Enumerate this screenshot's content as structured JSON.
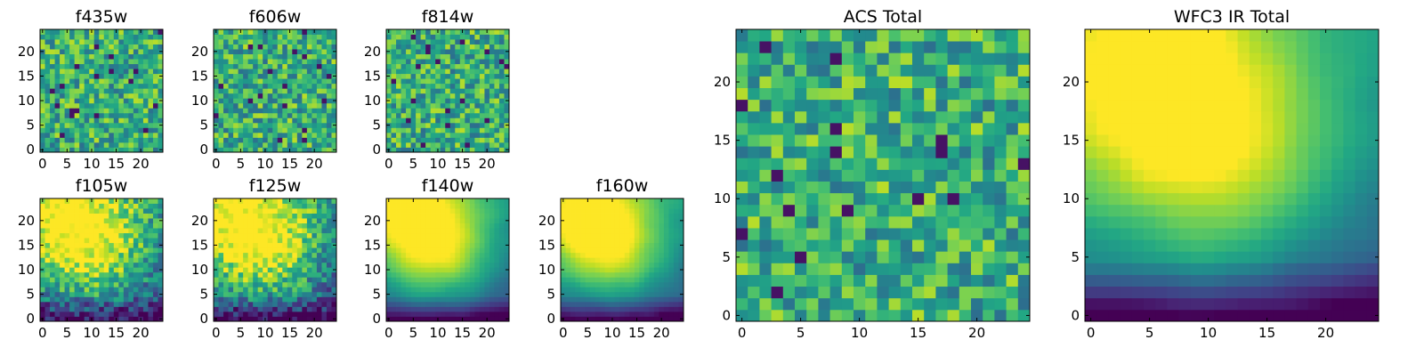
{
  "colormap": "viridis",
  "chart_data": [
    {
      "type": "heatmap",
      "title": "f435w",
      "xticks": [
        0,
        5,
        10,
        15,
        20
      ],
      "yticks": [
        0,
        5,
        10,
        15,
        20
      ],
      "xlim": [
        -0.5,
        24.5
      ],
      "ylim": [
        -0.5,
        24.5
      ],
      "grid_size": 25,
      "pattern": "noise-flat",
      "seed": 11,
      "grid": false
    },
    {
      "type": "heatmap",
      "title": "f606w",
      "xticks": [
        0,
        5,
        10,
        15,
        20
      ],
      "yticks": [
        0,
        5,
        10,
        15,
        20
      ],
      "xlim": [
        -0.5,
        24.5
      ],
      "ylim": [
        -0.5,
        24.5
      ],
      "grid_size": 25,
      "pattern": "noise-flat",
      "seed": 23,
      "grid": false
    },
    {
      "type": "heatmap",
      "title": "f814w",
      "xticks": [
        0,
        5,
        10,
        15,
        20
      ],
      "yticks": [
        0,
        5,
        10,
        15,
        20
      ],
      "xlim": [
        -0.5,
        24.5
      ],
      "ylim": [
        -0.5,
        24.5
      ],
      "grid_size": 25,
      "pattern": "noise-flat",
      "seed": 37,
      "grid": false
    },
    {
      "type": "heatmap",
      "title": "f105w",
      "xticks": [
        0,
        5,
        10,
        15,
        20
      ],
      "yticks": [
        0,
        5,
        10,
        15,
        20
      ],
      "xlim": [
        -0.5,
        24.5
      ],
      "ylim": [
        -0.5,
        24.5
      ],
      "grid_size": 25,
      "pattern": "noise-blob",
      "seed": 41,
      "grid": false
    },
    {
      "type": "heatmap",
      "title": "f125w",
      "xticks": [
        0,
        5,
        10,
        15,
        20
      ],
      "yticks": [
        0,
        5,
        10,
        15,
        20
      ],
      "xlim": [
        -0.5,
        24.5
      ],
      "ylim": [
        -0.5,
        24.5
      ],
      "grid_size": 25,
      "pattern": "noise-blob",
      "seed": 53,
      "grid": false
    },
    {
      "type": "heatmap",
      "title": "f140w",
      "xticks": [
        0,
        5,
        10,
        15,
        20
      ],
      "yticks": [
        0,
        5,
        10,
        15,
        20
      ],
      "xlim": [
        -0.5,
        24.5
      ],
      "ylim": [
        -0.5,
        24.5
      ],
      "grid_size": 25,
      "pattern": "smooth-blob",
      "seed": 67,
      "grid": false
    },
    {
      "type": "heatmap",
      "title": "f160w",
      "xticks": [
        0,
        5,
        10,
        15,
        20
      ],
      "yticks": [
        0,
        5,
        10,
        15,
        20
      ],
      "xlim": [
        -0.5,
        24.5
      ],
      "ylim": [
        -0.5,
        24.5
      ],
      "grid_size": 25,
      "pattern": "smooth-blob",
      "seed": 79,
      "grid": false
    },
    {
      "type": "heatmap",
      "title": "ACS Total",
      "xticks": [
        0,
        5,
        10,
        15,
        20
      ],
      "yticks": [
        0,
        5,
        10,
        15,
        20
      ],
      "xlim": [
        -0.5,
        24.5
      ],
      "ylim": [
        -0.5,
        24.5
      ],
      "grid_size": 25,
      "pattern": "noise-flat",
      "seed": 89,
      "grid": false
    },
    {
      "type": "heatmap",
      "title": "WFC3 IR Total",
      "xticks": [
        0,
        5,
        10,
        15,
        20
      ],
      "yticks": [
        0,
        5,
        10,
        15,
        20
      ],
      "xlim": [
        -0.5,
        24.5
      ],
      "ylim": [
        -0.5,
        24.5
      ],
      "grid_size": 25,
      "pattern": "smooth-blob",
      "seed": 97,
      "grid": false
    }
  ]
}
